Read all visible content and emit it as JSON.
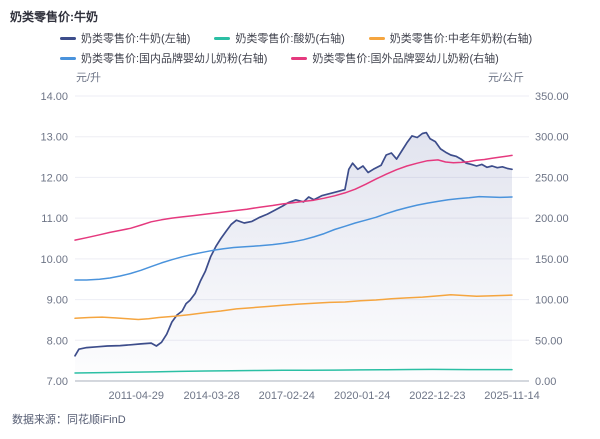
{
  "title": "奶类零售价:牛奶",
  "axes": {
    "left_unit": "元/升",
    "right_unit": "元/公斤"
  },
  "footer": {
    "source": "数据来源：同花顺iFinD"
  },
  "colors": {
    "milk": "#3D4D8B",
    "yogurt": "#2BBFA4",
    "senior_powder": "#F5A53F",
    "domestic_infant": "#4A93DC",
    "foreign_infant": "#E5397E",
    "grid": "#edeef4",
    "axis_line": "#aab0bc",
    "tick_text": "#6e7587"
  },
  "chart_data": {
    "type": "line",
    "title": "奶类零售价:牛奶",
    "x_range_years": [
      2008.95,
      2025.87
    ],
    "x_ticks": [
      {
        "label": "2011-04-29",
        "year": 2011.32
      },
      {
        "label": "2014-03-28",
        "year": 2014.24
      },
      {
        "label": "2017-02-24",
        "year": 2017.15
      },
      {
        "label": "2020-01-24",
        "year": 2020.07
      },
      {
        "label": "2022-12-23",
        "year": 2022.98
      },
      {
        "label": "2025-11-14",
        "year": 2025.87
      }
    ],
    "y_left": {
      "unit": "元/升",
      "min": 7,
      "max": 14,
      "ticks": [
        {
          "label": "14.00",
          "value": 14
        },
        {
          "label": "13.00",
          "value": 13
        },
        {
          "label": "12.00",
          "value": 12
        },
        {
          "label": "11.00",
          "value": 11
        },
        {
          "label": "10.00",
          "value": 10
        },
        {
          "label": "9.00",
          "value": 9
        },
        {
          "label": "8.00",
          "value": 8
        },
        {
          "label": "7.00",
          "value": 7
        }
      ]
    },
    "y_right": {
      "unit": "元/公斤",
      "min": 0,
      "max": 350,
      "ticks": [
        {
          "label": "350.00",
          "value": 350
        },
        {
          "label": "300.00",
          "value": 300
        },
        {
          "label": "250.00",
          "value": 250
        },
        {
          "label": "200.00",
          "value": 200
        },
        {
          "label": "150.00",
          "value": 150
        },
        {
          "label": "100.00",
          "value": 100
        },
        {
          "label": "50.00",
          "value": 50
        },
        {
          "label": "0.00",
          "value": 0
        }
      ]
    },
    "series": [
      {
        "name": "奶类零售价:牛奶(左轴)",
        "axis": "left",
        "color": "#3D4D8B",
        "area": true,
        "points": [
          [
            2008.95,
            7.62
          ],
          [
            2009.1,
            7.78
          ],
          [
            2009.4,
            7.82
          ],
          [
            2009.8,
            7.84
          ],
          [
            2010.2,
            7.86
          ],
          [
            2010.7,
            7.87
          ],
          [
            2011.1,
            7.89
          ],
          [
            2011.5,
            7.91
          ],
          [
            2011.9,
            7.93
          ],
          [
            2012.1,
            7.86
          ],
          [
            2012.3,
            7.95
          ],
          [
            2012.5,
            8.15
          ],
          [
            2012.7,
            8.45
          ],
          [
            2012.9,
            8.62
          ],
          [
            2013.1,
            8.72
          ],
          [
            2013.25,
            8.9
          ],
          [
            2013.4,
            8.98
          ],
          [
            2013.6,
            9.15
          ],
          [
            2013.8,
            9.45
          ],
          [
            2014.0,
            9.7
          ],
          [
            2014.2,
            10.05
          ],
          [
            2014.4,
            10.3
          ],
          [
            2014.6,
            10.5
          ],
          [
            2014.8,
            10.68
          ],
          [
            2015.0,
            10.85
          ],
          [
            2015.2,
            10.95
          ],
          [
            2015.5,
            10.88
          ],
          [
            2015.8,
            10.92
          ],
          [
            2016.1,
            11.02
          ],
          [
            2016.4,
            11.1
          ],
          [
            2016.7,
            11.2
          ],
          [
            2017.0,
            11.3
          ],
          [
            2017.2,
            11.38
          ],
          [
            2017.5,
            11.45
          ],
          [
            2017.8,
            11.4
          ],
          [
            2018.0,
            11.52
          ],
          [
            2018.2,
            11.45
          ],
          [
            2018.5,
            11.55
          ],
          [
            2018.8,
            11.6
          ],
          [
            2019.1,
            11.65
          ],
          [
            2019.4,
            11.7
          ],
          [
            2019.55,
            12.2
          ],
          [
            2019.7,
            12.35
          ],
          [
            2019.9,
            12.2
          ],
          [
            2020.1,
            12.28
          ],
          [
            2020.3,
            12.12
          ],
          [
            2020.5,
            12.2
          ],
          [
            2020.8,
            12.3
          ],
          [
            2021.0,
            12.55
          ],
          [
            2021.2,
            12.6
          ],
          [
            2021.4,
            12.45
          ],
          [
            2021.6,
            12.65
          ],
          [
            2021.8,
            12.85
          ],
          [
            2022.0,
            13.02
          ],
          [
            2022.2,
            12.98
          ],
          [
            2022.4,
            13.08
          ],
          [
            2022.55,
            13.1
          ],
          [
            2022.7,
            12.95
          ],
          [
            2022.9,
            12.88
          ],
          [
            2023.1,
            12.7
          ],
          [
            2023.3,
            12.62
          ],
          [
            2023.5,
            12.55
          ],
          [
            2023.7,
            12.52
          ],
          [
            2023.9,
            12.45
          ],
          [
            2024.1,
            12.35
          ],
          [
            2024.3,
            12.32
          ],
          [
            2024.5,
            12.28
          ],
          [
            2024.7,
            12.32
          ],
          [
            2024.9,
            12.25
          ],
          [
            2025.1,
            12.28
          ],
          [
            2025.3,
            12.24
          ],
          [
            2025.5,
            12.26
          ],
          [
            2025.7,
            12.22
          ],
          [
            2025.87,
            12.2
          ]
        ]
      },
      {
        "name": "奶类零售价:酸奶(右轴)",
        "axis": "right",
        "color": "#2BBFA4",
        "area": false,
        "points": [
          [
            2008.95,
            9.8
          ],
          [
            2010.0,
            10.3
          ],
          [
            2011.0,
            10.8
          ],
          [
            2012.0,
            11.2
          ],
          [
            2013.0,
            11.8
          ],
          [
            2014.0,
            12.3
          ],
          [
            2015.0,
            12.6
          ],
          [
            2016.0,
            12.9
          ],
          [
            2017.0,
            13.1
          ],
          [
            2018.0,
            13.3
          ],
          [
            2019.0,
            13.4
          ],
          [
            2020.0,
            13.6
          ],
          [
            2021.0,
            13.9
          ],
          [
            2022.0,
            14.1
          ],
          [
            2022.8,
            14.3
          ],
          [
            2023.5,
            14.1
          ],
          [
            2024.2,
            14.0
          ],
          [
            2025.0,
            14.0
          ],
          [
            2025.87,
            14.05
          ]
        ]
      },
      {
        "name": "奶类零售价:中老年奶粉(右轴)",
        "axis": "right",
        "color": "#F5A53F",
        "area": false,
        "points": [
          [
            2008.95,
            77
          ],
          [
            2009.5,
            78
          ],
          [
            2010.0,
            78.5
          ],
          [
            2010.5,
            77.5
          ],
          [
            2011.0,
            76.5
          ],
          [
            2011.4,
            75.5
          ],
          [
            2011.8,
            76.5
          ],
          [
            2012.2,
            78
          ],
          [
            2012.8,
            79.5
          ],
          [
            2013.4,
            81.5
          ],
          [
            2014.0,
            84
          ],
          [
            2014.6,
            86
          ],
          [
            2015.2,
            88.5
          ],
          [
            2015.8,
            90
          ],
          [
            2016.4,
            91.5
          ],
          [
            2017.0,
            93
          ],
          [
            2017.6,
            94.5
          ],
          [
            2018.2,
            95.5
          ],
          [
            2018.8,
            96.5
          ],
          [
            2019.4,
            97
          ],
          [
            2020.0,
            98.5
          ],
          [
            2020.6,
            99.5
          ],
          [
            2021.2,
            101
          ],
          [
            2021.8,
            102
          ],
          [
            2022.4,
            103
          ],
          [
            2023.0,
            104.5
          ],
          [
            2023.5,
            106
          ],
          [
            2024.0,
            105
          ],
          [
            2024.5,
            104
          ],
          [
            2025.0,
            104.5
          ],
          [
            2025.87,
            105.5
          ]
        ]
      },
      {
        "name": "奶类零售价:国内品牌婴幼儿奶粉(右轴)",
        "axis": "right",
        "color": "#4A93DC",
        "area": false,
        "points": [
          [
            2008.95,
            124
          ],
          [
            2009.4,
            124
          ],
          [
            2009.9,
            125
          ],
          [
            2010.3,
            126.5
          ],
          [
            2010.7,
            129
          ],
          [
            2011.1,
            132
          ],
          [
            2011.5,
            136
          ],
          [
            2011.9,
            140.5
          ],
          [
            2012.3,
            145
          ],
          [
            2012.7,
            149
          ],
          [
            2013.1,
            152.5
          ],
          [
            2013.5,
            155.5
          ],
          [
            2013.9,
            158
          ],
          [
            2014.3,
            160.5
          ],
          [
            2014.7,
            162.5
          ],
          [
            2015.1,
            164
          ],
          [
            2015.6,
            165
          ],
          [
            2016.1,
            166
          ],
          [
            2016.6,
            167.5
          ],
          [
            2017.0,
            169
          ],
          [
            2017.4,
            171
          ],
          [
            2017.8,
            173.5
          ],
          [
            2018.2,
            177
          ],
          [
            2018.6,
            181
          ],
          [
            2019.0,
            186
          ],
          [
            2019.4,
            190
          ],
          [
            2019.8,
            194
          ],
          [
            2020.2,
            197.5
          ],
          [
            2020.6,
            201
          ],
          [
            2021.0,
            205.5
          ],
          [
            2021.4,
            209.5
          ],
          [
            2021.8,
            213
          ],
          [
            2022.2,
            216
          ],
          [
            2022.6,
            218.5
          ],
          [
            2023.0,
            220.5
          ],
          [
            2023.4,
            222.5
          ],
          [
            2023.8,
            224
          ],
          [
            2024.2,
            225
          ],
          [
            2024.6,
            226.5
          ],
          [
            2025.0,
            226
          ],
          [
            2025.4,
            225.5
          ],
          [
            2025.87,
            226
          ]
        ]
      },
      {
        "name": "奶类零售价:国外品牌婴幼儿奶粉(右轴)",
        "axis": "right",
        "color": "#E5397E",
        "area": false,
        "points": [
          [
            2008.95,
            173
          ],
          [
            2009.4,
            176
          ],
          [
            2009.9,
            179.5
          ],
          [
            2010.3,
            182.5
          ],
          [
            2010.7,
            185
          ],
          [
            2011.1,
            187.5
          ],
          [
            2011.5,
            191.5
          ],
          [
            2011.9,
            195.5
          ],
          [
            2012.3,
            198
          ],
          [
            2012.7,
            200
          ],
          [
            2013.1,
            201.5
          ],
          [
            2013.5,
            203
          ],
          [
            2013.9,
            204.5
          ],
          [
            2014.3,
            206
          ],
          [
            2014.7,
            207.5
          ],
          [
            2015.1,
            209
          ],
          [
            2015.6,
            211
          ],
          [
            2016.1,
            213.5
          ],
          [
            2016.6,
            215.5
          ],
          [
            2017.0,
            217.5
          ],
          [
            2017.4,
            219
          ],
          [
            2017.8,
            220.5
          ],
          [
            2018.2,
            222
          ],
          [
            2018.6,
            224.5
          ],
          [
            2019.0,
            227.5
          ],
          [
            2019.4,
            231
          ],
          [
            2019.8,
            235.5
          ],
          [
            2020.2,
            241.5
          ],
          [
            2020.6,
            248
          ],
          [
            2021.0,
            254
          ],
          [
            2021.4,
            259.5
          ],
          [
            2021.8,
            264
          ],
          [
            2022.2,
            267.5
          ],
          [
            2022.6,
            270.5
          ],
          [
            2023.0,
            271.5
          ],
          [
            2023.3,
            269
          ],
          [
            2023.6,
            268
          ],
          [
            2023.9,
            268.5
          ],
          [
            2024.2,
            269.5
          ],
          [
            2024.5,
            271
          ],
          [
            2024.8,
            272
          ],
          [
            2025.1,
            273.5
          ],
          [
            2025.4,
            275
          ],
          [
            2025.87,
            277
          ]
        ]
      }
    ],
    "legend_position": "top",
    "grid": true
  }
}
